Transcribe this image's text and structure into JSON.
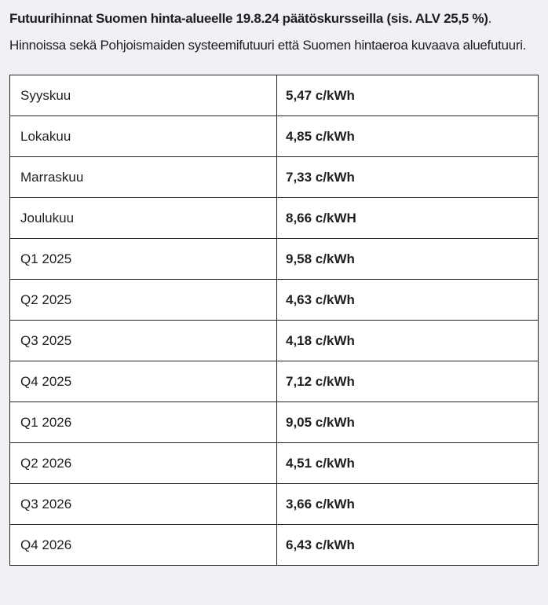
{
  "intro": {
    "line1_bold": "Futuurihinnat Suomen hinta-alueelle 19.8.24 päätöskursseilla (sis. ALV 25,5 %)",
    "line1_suffix": ".",
    "line2": "Hinnoissa sekä Pohjoismaiden systeemifutuuri että Suomen hintaeroa kuvaava",
    "line3": "aluefutuuri."
  },
  "table": {
    "rows": [
      {
        "period": "Syyskuu",
        "price": "5,47 c/kWh"
      },
      {
        "period": "Lokakuu",
        "price": "4,85 c/kWh"
      },
      {
        "period": "Marraskuu",
        "price": "7,33 c/kWh"
      },
      {
        "period": "Joulukuu",
        "price": "8,66 c/kWH"
      },
      {
        "period": "Q1 2025",
        "price": "9,58 c/kWh"
      },
      {
        "period": "Q2 2025",
        "price": "4,63 c/kWh"
      },
      {
        "period": "Q3 2025",
        "price": "4,18 c/kWh"
      },
      {
        "period": "Q4 2025",
        "price": "7,12 c/kWh"
      },
      {
        "period": "Q1 2026",
        "price": "9,05 c/kWh"
      },
      {
        "period": "Q2 2026",
        "price": "4,51 c/kWh"
      },
      {
        "period": "Q3 2026",
        "price": "3,66 c/kWh"
      },
      {
        "period": "Q4 2026",
        "price": "6,43 c/kWh"
      }
    ]
  },
  "colors": {
    "page_background": "#f0f1f4",
    "table_background": "#ffffff",
    "table_border": "#222222",
    "text": "#1d1e20"
  }
}
